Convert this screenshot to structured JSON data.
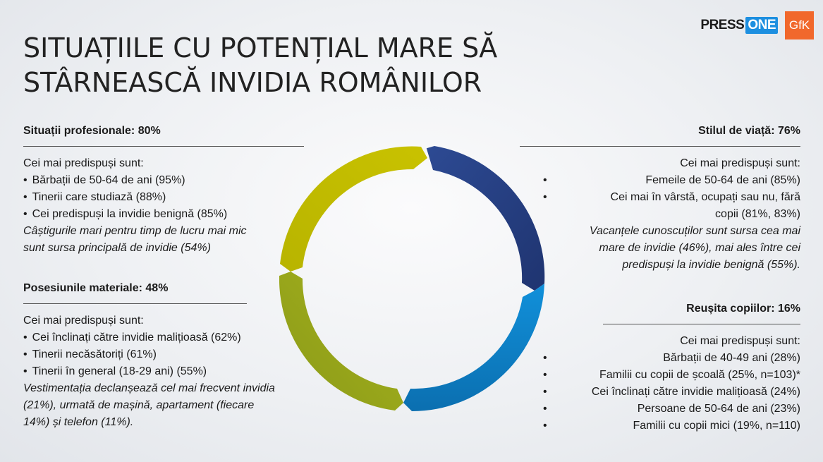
{
  "logos": {
    "press": "PRESS",
    "one": "ONE",
    "gfk": "GfK"
  },
  "title": {
    "line1": "SITUAȚIILE CU POTENȚIAL MARE SĂ",
    "line2": "STÂRNEASCĂ INVIDIA ROMÂNILOR"
  },
  "sections": {
    "professional": {
      "heading": "Situații profesionale: 80%",
      "intro": "Cei mai predispuși sunt:",
      "items": [
        "Bărbații de 50-64 de ani (95%)",
        "Tinerii care studiază (88%)",
        "Cei predispuși la invidie benignă (85%)"
      ],
      "note_line1": "Câștigurile mari pentru timp de lucru mai mic",
      "note_line2": "sunt sursa principală de invidie (54%)"
    },
    "material": {
      "heading": "Posesiunile materiale: 48%",
      "intro": "Cei mai predispuși sunt:",
      "items": [
        "Cei înclinați către invidie malițioasă (62%)",
        "Tinerii necăsătoriți (61%)",
        "Tinerii în general (18-29 ani) (55%)"
      ],
      "note_line1": "Vestimentația declanșează cel mai frecvent invidia",
      "note_line2": "(21%), urmată de mașină, apartament (fiecare",
      "note_line3": "14%) și telefon (11%)."
    },
    "lifestyle": {
      "heading": "Stilul de viață: 76%",
      "intro": "Cei mai predispuși sunt:",
      "items": [
        "Femeile de 50-64 de ani (85%)",
        "Cei mai în vârstă, ocupați sau nu, fără"
      ],
      "item_cont": "copii (81%, 83%)",
      "note_line1": "Vacanțele cunoscuților sunt sursa cea mai",
      "note_line2": "mare de invidie (46%), mai ales între cei",
      "note_line3": "predispuși la invidie benignă (55%)."
    },
    "children": {
      "heading": "Reușita copiilor: 16%",
      "intro": "Cei mai predispuși sunt:",
      "items": [
        "Bărbații de 40-49 ani (28%)",
        "Familii cu copii de școală (25%, n=103)*",
        "Cei înclinați către invidie malițioasă (24%)",
        "Persoane de 50-64 de ani (23%)",
        "Familii cu copii mici (19%, n=110)"
      ]
    }
  },
  "donut_colors": {
    "navy": "#263d7d",
    "blue": "#0f82c8",
    "olive": "#a0ae1c",
    "lime": "#c3bd00"
  }
}
